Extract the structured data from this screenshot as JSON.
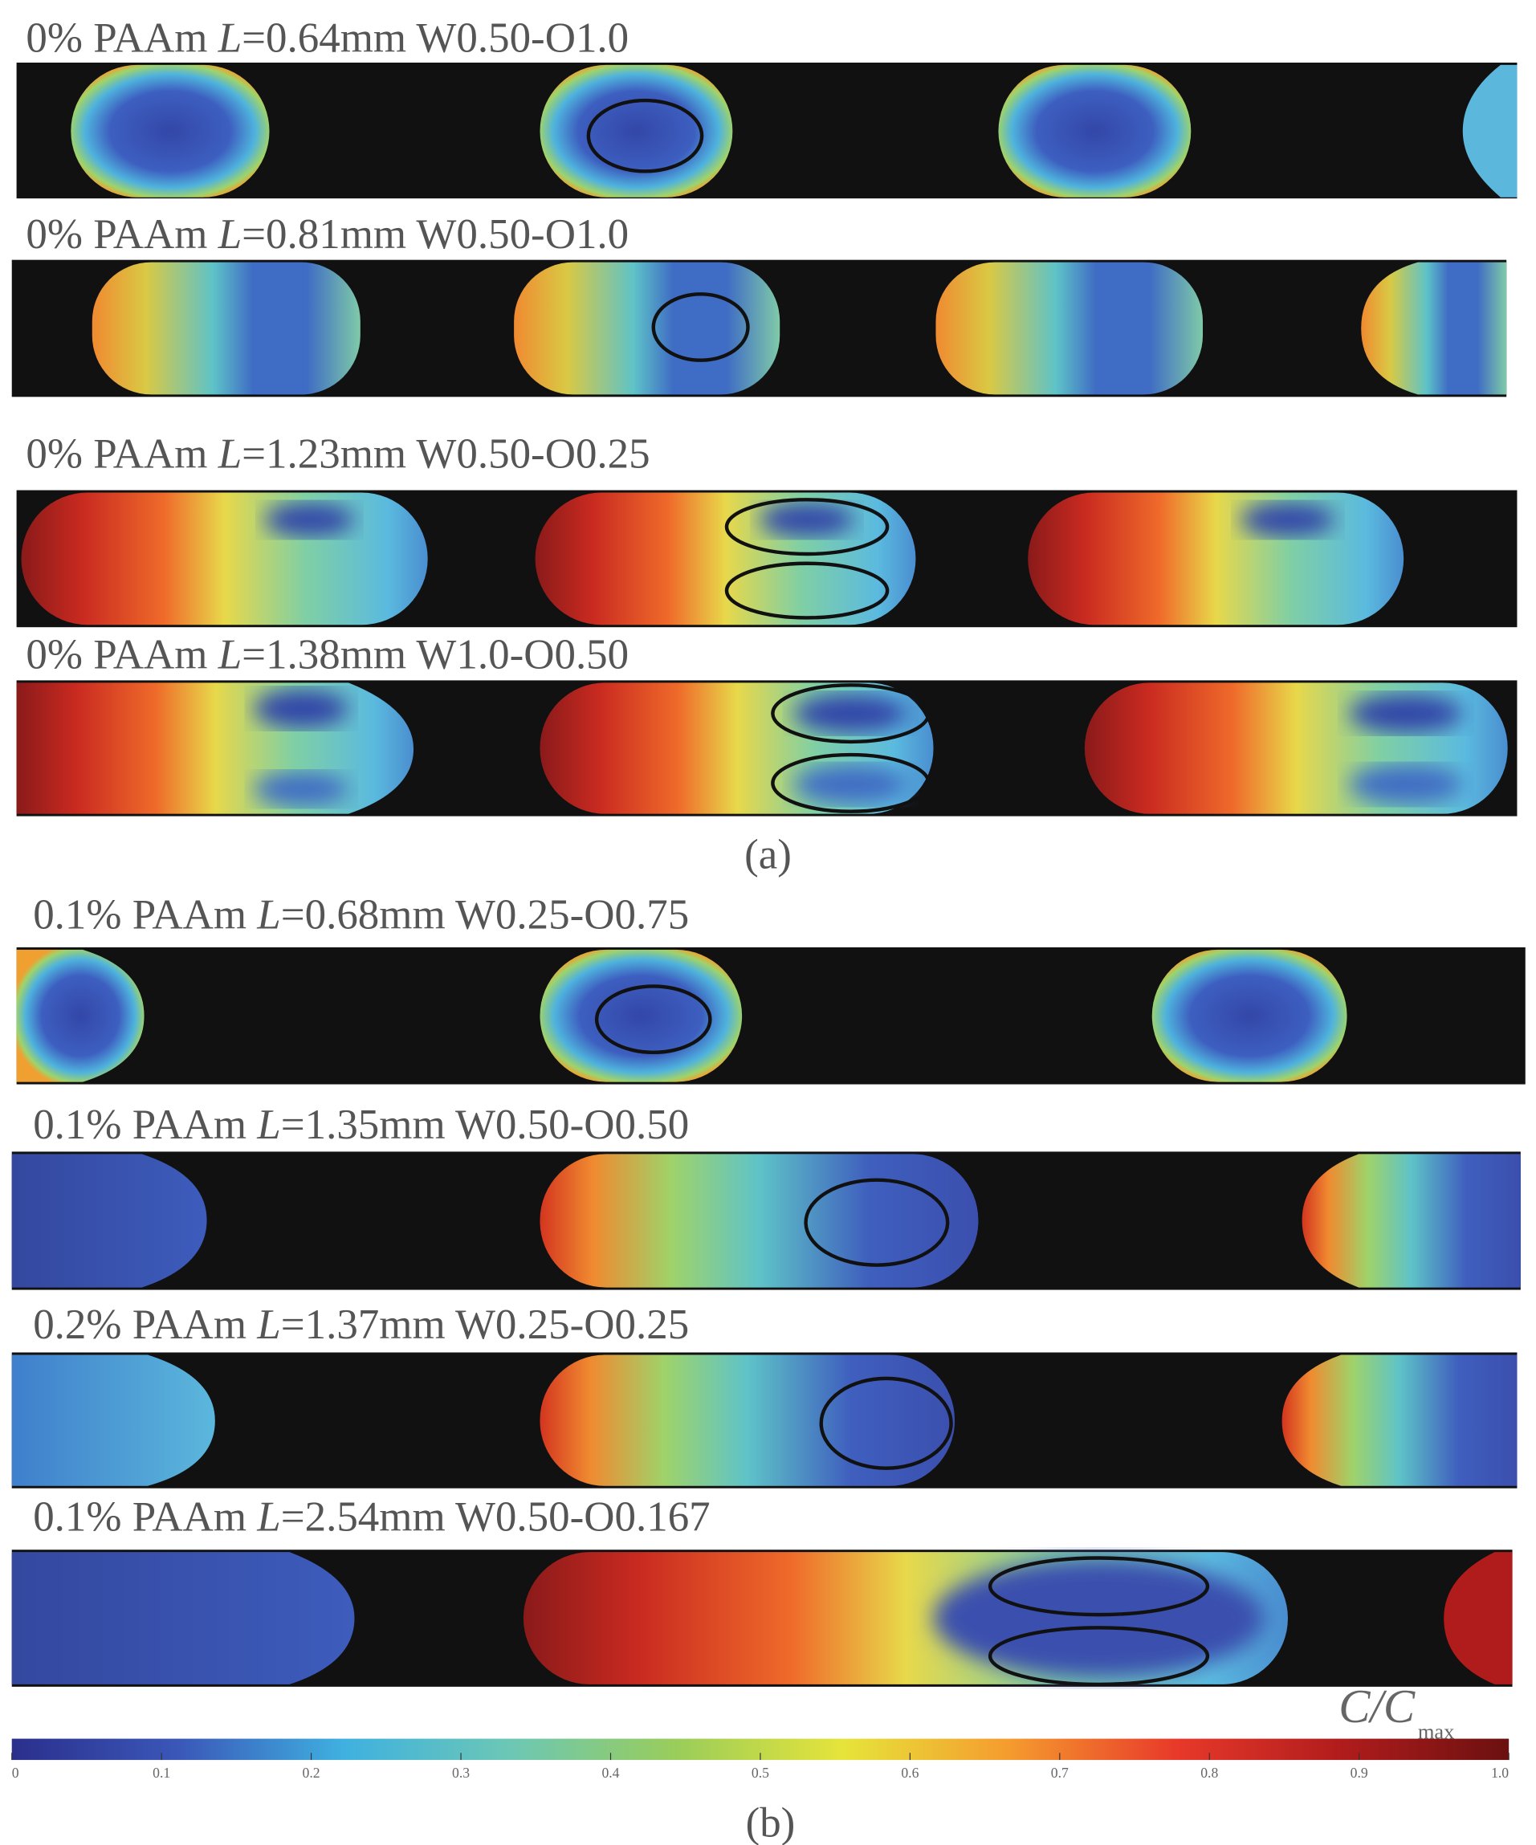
{
  "panels": [
    {
      "pre": "0% PAAm ",
      "var": "L",
      "post": "=0.64mm W0.50-O1.0"
    },
    {
      "pre": "0% PAAm ",
      "var": "L",
      "post": "=0.81mm W0.50-O1.0"
    },
    {
      "pre": "0% PAAm ",
      "var": "L",
      "post": "=1.23mm W0.50-O0.25"
    },
    {
      "pre": "0% PAAm ",
      "var": "L",
      "post": "=1.38mm W1.0-O0.50"
    },
    {
      "pre": "0.1% PAAm ",
      "var": "L",
      "post": "=0.68mm W0.25-O0.75"
    },
    {
      "pre": "0.1% PAAm ",
      "var": "L",
      "post": "=1.35mm W0.50-O0.50"
    },
    {
      "pre": "0.2% PAAm ",
      "var": "L",
      "post": "=1.37mm W0.25-O0.25"
    },
    {
      "pre": "0.1% PAAm ",
      "var": "L",
      "post": "=2.54mm W0.50-O0.167"
    }
  ],
  "captions": {
    "a": "(a)",
    "b": "(b)"
  },
  "colorbar": {
    "label_main": "C/C",
    "label_sub": "max",
    "min": 0,
    "max": 1.0,
    "ticks": [
      "0",
      "0.1",
      "0.2",
      "0.3",
      "0.4",
      "0.5",
      "0.6",
      "0.7",
      "0.8",
      "0.9",
      "1.0"
    ],
    "colors": [
      "#2b2f8c",
      "#3a57b8",
      "#3fb1e0",
      "#6cc7b5",
      "#9acd5a",
      "#e6e43a",
      "#f59b2e",
      "#e8392a",
      "#b01c1c",
      "#6b1010"
    ]
  }
}
